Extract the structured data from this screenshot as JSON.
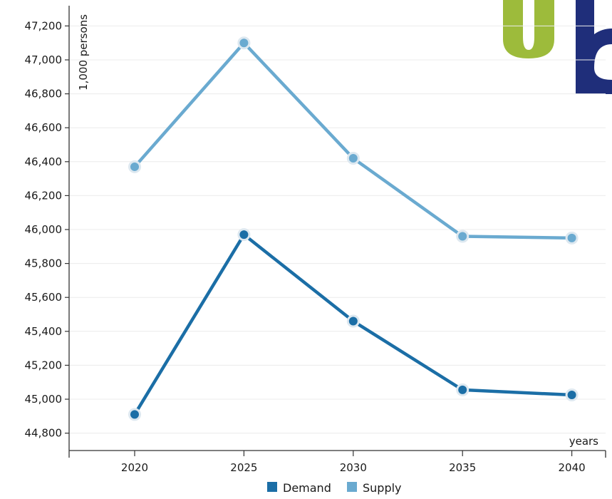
{
  "chart_data": {
    "type": "line",
    "title": "",
    "xlabel": "years",
    "ylabel": "1,000 persons",
    "x": [
      "2020",
      "2025",
      "2030",
      "2035",
      "2040"
    ],
    "ylim": [
      44700,
      47300
    ],
    "yticks": [
      44800,
      45000,
      45200,
      45400,
      45600,
      45800,
      46000,
      46200,
      46400,
      46600,
      46800,
      47000,
      47200
    ],
    "ytick_labels": [
      "44,800",
      "45,000",
      "45,200",
      "45,400",
      "45,600",
      "45,800",
      "46,000",
      "46,200",
      "46,400",
      "46,600",
      "46,800",
      "47,000",
      "47,200"
    ],
    "grid": true,
    "legend_position": "bottom",
    "series": [
      {
        "name": "Demand",
        "color": "#1b6ea6",
        "values": [
          44910,
          45970,
          45460,
          45055,
          45025
        ]
      },
      {
        "name": "Supply",
        "color": "#6aaad0",
        "values": [
          46370,
          47100,
          46420,
          45960,
          45950
        ]
      }
    ]
  },
  "logo": {
    "colors": [
      "#9dbb3b",
      "#1f2e7a"
    ]
  }
}
